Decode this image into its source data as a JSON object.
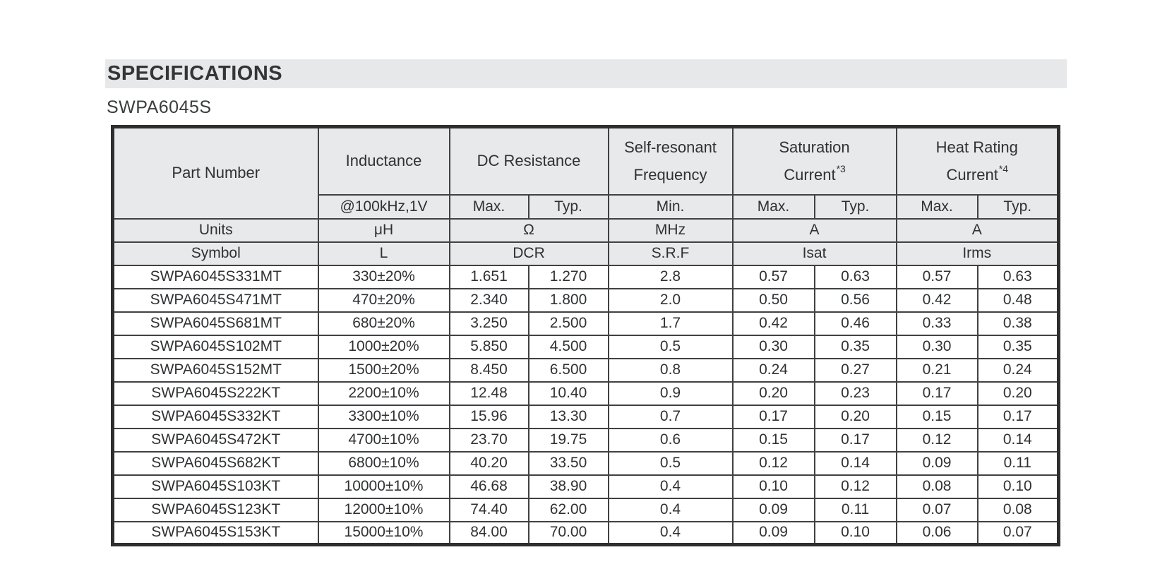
{
  "page": {
    "section_title": "SPECIFICATIONS",
    "series_title": "SWPA6045S"
  },
  "colors": {
    "section_bar_bg": "#e6e8e9",
    "table_header_bg": "#e7e9ea",
    "table_border": "#2e2e2e",
    "text": "#2f3133"
  },
  "table": {
    "header": {
      "part_number": "Part Number",
      "inductance": "Inductance",
      "dc_resistance": "DC Resistance",
      "self_resonant_line1": "Self-resonant",
      "self_resonant_line2": "Frequency",
      "saturation_line1": "Saturation",
      "saturation_line2": "Current",
      "saturation_footnote": "*3",
      "heat_rating_line1": "Heat Rating",
      "heat_rating_line2": "Current",
      "heat_rating_footnote": "*4"
    },
    "subheader": [
      "@100kHz,1V",
      "Max.",
      "Typ.",
      "Min.",
      "Max.",
      "Typ.",
      "Max.",
      "Typ."
    ],
    "units_row": [
      "Units",
      "μH",
      "Ω",
      "MHz",
      "A",
      "A"
    ],
    "symbol_row": [
      "Symbol",
      "L",
      "DCR",
      "S.R.F",
      "Isat",
      "Irms"
    ],
    "rows": [
      [
        "SWPA6045S331MT",
        "330±20%",
        "1.651",
        "1.270",
        "2.8",
        "0.57",
        "0.63",
        "0.57",
        "0.63"
      ],
      [
        "SWPA6045S471MT",
        "470±20%",
        "2.340",
        "1.800",
        "2.0",
        "0.50",
        "0.56",
        "0.42",
        "0.48"
      ],
      [
        "SWPA6045S681MT",
        "680±20%",
        "3.250",
        "2.500",
        "1.7",
        "0.42",
        "0.46",
        "0.33",
        "0.38"
      ],
      [
        "SWPA6045S102MT",
        "1000±20%",
        "5.850",
        "4.500",
        "0.5",
        "0.30",
        "0.35",
        "0.30",
        "0.35"
      ],
      [
        "SWPA6045S152MT",
        "1500±20%",
        "8.450",
        "6.500",
        "0.8",
        "0.24",
        "0.27",
        "0.21",
        "0.24"
      ],
      [
        "SWPA6045S222KT",
        "2200±10%",
        "12.48",
        "10.40",
        "0.9",
        "0.20",
        "0.23",
        "0.17",
        "0.20"
      ],
      [
        "SWPA6045S332KT",
        "3300±10%",
        "15.96",
        "13.30",
        "0.7",
        "0.17",
        "0.20",
        "0.15",
        "0.17"
      ],
      [
        "SWPA6045S472KT",
        "4700±10%",
        "23.70",
        "19.75",
        "0.6",
        "0.15",
        "0.17",
        "0.12",
        "0.14"
      ],
      [
        "SWPA6045S682KT",
        "6800±10%",
        "40.20",
        "33.50",
        "0.5",
        "0.12",
        "0.14",
        "0.09",
        "0.11"
      ],
      [
        "SWPA6045S103KT",
        "10000±10%",
        "46.68",
        "38.90",
        "0.4",
        "0.10",
        "0.12",
        "0.08",
        "0.10"
      ],
      [
        "SWPA6045S123KT",
        "12000±10%",
        "74.40",
        "62.00",
        "0.4",
        "0.09",
        "0.11",
        "0.07",
        "0.08"
      ],
      [
        "SWPA6045S153KT",
        "15000±10%",
        "84.00",
        "70.00",
        "0.4",
        "0.09",
        "0.10",
        "0.06",
        "0.07"
      ]
    ]
  }
}
